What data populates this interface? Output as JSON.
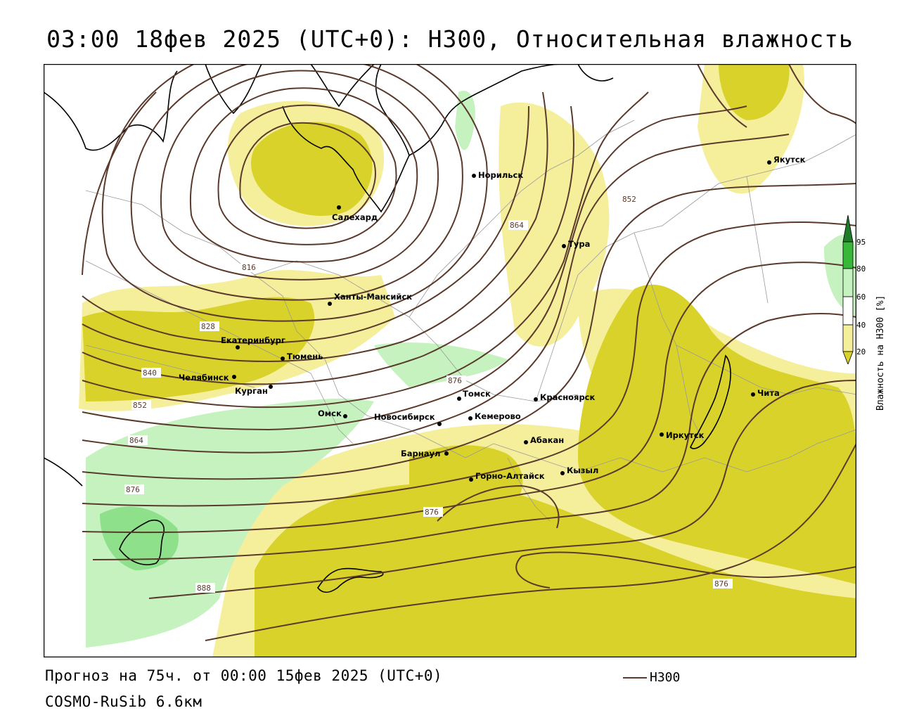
{
  "title": "03:00 18фев 2025 (UTC+0): H300, Относительная влажность",
  "footer": {
    "forecast": "Прогноз на 75ч. от 00:00 15фев 2025 (UTC+0)",
    "model": "COSMO-RuSib 6.6км"
  },
  "legend": {
    "line_label": "H300",
    "colorbar_title": "Влажность на H300 [%]",
    "ticks": [
      "95",
      "80",
      "60",
      "40",
      "20"
    ],
    "colors": {
      "dry_dark": "#d8d22a",
      "dry_light": "#f5ef9c",
      "moist_light": "#c6f2c0",
      "moist_mid": "#8ee08a",
      "wet": "#38b838",
      "very_wet": "#1f7a2a",
      "isohypse": "#5a3a2c"
    }
  },
  "cities": [
    {
      "name": "Салехард"
    },
    {
      "name": "Норильск"
    },
    {
      "name": "Якутск"
    },
    {
      "name": "Тура"
    },
    {
      "name": "Ханты-Мансийск"
    },
    {
      "name": "Екатеринбург"
    },
    {
      "name": "Тюмень"
    },
    {
      "name": "Челябинск"
    },
    {
      "name": "Курган"
    },
    {
      "name": "Омск"
    },
    {
      "name": "Томск"
    },
    {
      "name": "Новосибирск"
    },
    {
      "name": "Кемерово"
    },
    {
      "name": "Красноярск"
    },
    {
      "name": "Барнаул"
    },
    {
      "name": "Абакан"
    },
    {
      "name": "Горно-Алтайск"
    },
    {
      "name": "Кызыл"
    },
    {
      "name": "Иркутск"
    },
    {
      "name": "Чита"
    }
  ],
  "isohypse_labels": [
    "816",
    "828",
    "840",
    "852",
    "864",
    "876",
    "876",
    "852",
    "864",
    "876",
    "876",
    "888"
  ]
}
